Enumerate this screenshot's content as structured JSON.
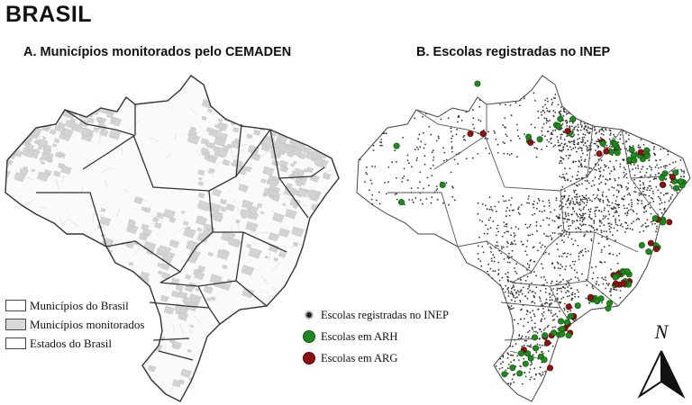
{
  "title": "BRASIL",
  "panel_a": {
    "title": "A. Municípios monitorados pelo CEMADEN",
    "legend": [
      {
        "label": "Municípios do Brasil",
        "color": "#ffffff"
      },
      {
        "label": "Municípios monitorados",
        "color": "#d9d9d9"
      },
      {
        "label": "Estados do Brasil",
        "color": "#ffffff"
      }
    ]
  },
  "panel_b": {
    "title": "B. Escolas registradas no INEP",
    "legend": [
      {
        "label": "Escolas registradas no INEP",
        "color": "#222222"
      },
      {
        "label": "Escolas em ARH",
        "color": "#1e8a1e"
      },
      {
        "label": "Escolas em ARG",
        "color": "#8e1010"
      }
    ]
  },
  "north_arrow": {
    "label": "N"
  },
  "colors": {
    "monitored": "#d9d9d9",
    "state_border": "#333333",
    "inep": "#222222",
    "arh": "#1e8a1e",
    "arg": "#8e1010"
  }
}
